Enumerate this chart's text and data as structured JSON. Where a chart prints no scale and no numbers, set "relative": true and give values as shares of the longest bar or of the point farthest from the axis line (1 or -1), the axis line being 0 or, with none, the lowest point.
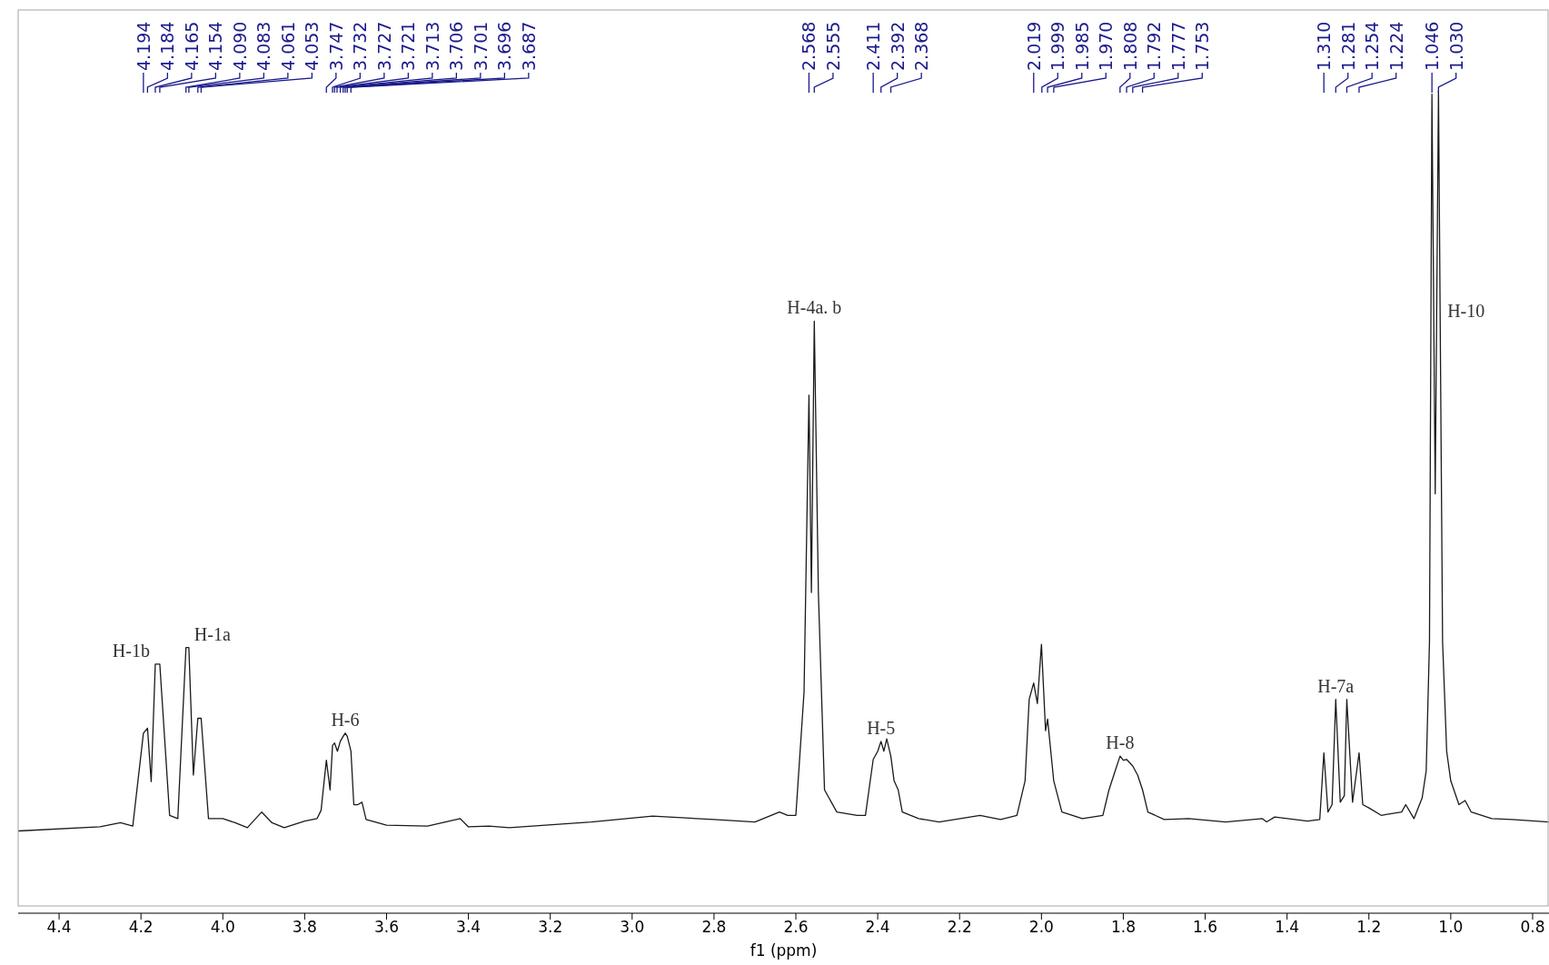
{
  "chart_data": {
    "type": "line",
    "relative": true,
    "xlabel": "f1 (ppm)",
    "xlim": [
      4.5,
      0.76
    ],
    "xticks": [
      4.4,
      4.2,
      {
        "value": 4,
        "label": "4.0"
      },
      3.8,
      3.6,
      3.4,
      3.2,
      {
        "value": 3,
        "label": "3.0"
      },
      2.8,
      2.6,
      2.4,
      2.2,
      {
        "value": 2,
        "label": "2.0"
      },
      1.8,
      1.6,
      1.4,
      1.2,
      {
        "value": 1,
        "label": "1.0"
      },
      0.8
    ],
    "marker": "none",
    "line_style": "solid",
    "series": [
      {
        "color": "#1a1a1a",
        "x": [
          4.5,
          4.3,
          4.25,
          4.22,
          4.194,
          4.184,
          4.175,
          4.165,
          4.154,
          4.13,
          4.11,
          4.09,
          4.083,
          4.072,
          4.061,
          4.053,
          4.035,
          4.0,
          3.97,
          3.94,
          3.905,
          3.88,
          3.85,
          3.8,
          3.77,
          3.76,
          3.747,
          3.738,
          3.732,
          3.727,
          3.72,
          3.713,
          3.706,
          3.701,
          3.696,
          3.687,
          3.68,
          3.67,
          3.66,
          3.65,
          3.6,
          3.5,
          3.42,
          3.4,
          3.35,
          3.3,
          3.1,
          2.95,
          2.8,
          2.7,
          2.64,
          2.62,
          2.6,
          2.58,
          2.568,
          2.562,
          2.555,
          2.545,
          2.53,
          2.5,
          2.45,
          2.43,
          2.42,
          2.411,
          2.4,
          2.392,
          2.385,
          2.378,
          2.368,
          2.36,
          2.35,
          2.34,
          2.3,
          2.25,
          2.15,
          2.1,
          2.06,
          2.04,
          2.03,
          2.019,
          2.01,
          2.0,
          1.99,
          1.985,
          1.97,
          1.95,
          1.9,
          1.85,
          1.835,
          1.82,
          1.808,
          1.8,
          1.792,
          1.777,
          1.765,
          1.753,
          1.74,
          1.7,
          1.64,
          1.55,
          1.46,
          1.45,
          1.43,
          1.35,
          1.32,
          1.31,
          1.3,
          1.29,
          1.281,
          1.27,
          1.26,
          1.254,
          1.24,
          1.224,
          1.215,
          1.2,
          1.17,
          1.12,
          1.11,
          1.09,
          1.07,
          1.06,
          1.052,
          1.046,
          1.038,
          1.03,
          1.02,
          1.01,
          1.0,
          0.98,
          0.965,
          0.95,
          0.9,
          0.85,
          0.76
        ],
        "values": [
          0.1,
          0.105,
          0.11,
          0.106,
          0.219,
          0.225,
          0.16,
          0.303,
          0.303,
          0.119,
          0.115,
          0.323,
          0.323,
          0.168,
          0.237,
          0.237,
          0.115,
          0.115,
          0.11,
          0.104,
          0.123,
          0.11,
          0.104,
          0.112,
          0.115,
          0.125,
          0.186,
          0.15,
          0.204,
          0.207,
          0.197,
          0.209,
          0.215,
          0.219,
          0.215,
          0.197,
          0.132,
          0.132,
          0.135,
          0.114,
          0.107,
          0.106,
          0.115,
          0.105,
          0.106,
          0.104,
          0.111,
          0.118,
          0.114,
          0.111,
          0.123,
          0.119,
          0.119,
          0.269,
          0.63,
          0.39,
          0.72,
          0.39,
          0.15,
          0.123,
          0.119,
          0.119,
          0.155,
          0.187,
          0.197,
          0.209,
          0.197,
          0.212,
          0.191,
          0.161,
          0.15,
          0.123,
          0.115,
          0.111,
          0.119,
          0.114,
          0.119,
          0.161,
          0.26,
          0.28,
          0.255,
          0.327,
          0.222,
          0.236,
          0.161,
          0.123,
          0.115,
          0.119,
          0.15,
          0.173,
          0.191,
          0.186,
          0.187,
          0.179,
          0.168,
          0.15,
          0.123,
          0.114,
          0.115,
          0.111,
          0.115,
          0.111,
          0.117,
          0.112,
          0.114,
          0.195,
          0.123,
          0.132,
          0.26,
          0.135,
          0.143,
          0.26,
          0.135,
          0.195,
          0.132,
          0.128,
          0.119,
          0.123,
          0.132,
          0.115,
          0.14,
          0.173,
          0.33,
          0.996,
          0.51,
          1.0,
          0.33,
          0.197,
          0.161,
          0.132,
          0.137,
          0.123,
          0.115,
          0.114,
          0.111
        ]
      }
    ],
    "annotations": [
      {
        "text": "H-1b",
        "x": 4.165,
        "y": 0.303
      },
      {
        "text": "H-1a",
        "x": 4.083,
        "y": 0.323
      },
      {
        "text": "H-6",
        "x": 3.701,
        "y": 0.219
      },
      {
        "text": "H-4a. b",
        "x": 2.555,
        "y": 0.72
      },
      {
        "text": "H-5",
        "x": 2.392,
        "y": 0.209
      },
      {
        "text": "H-8",
        "x": 1.808,
        "y": 0.191
      },
      {
        "text": "H-7a",
        "x": 1.281,
        "y": 0.26
      },
      {
        "text": "H-10",
        "x": 1.026,
        "y": 0.732
      },
      {
        "text": "4.194",
        "x": 4.194
      },
      {
        "text": "4.184",
        "x": 4.184
      },
      {
        "text": "4.165",
        "x": 4.165
      },
      {
        "text": "4.154",
        "x": 4.154
      },
      {
        "text": "4.090",
        "x": 4.09
      },
      {
        "text": "4.083",
        "x": 4.083
      },
      {
        "text": "4.061",
        "x": 4.061
      },
      {
        "text": "4.053",
        "x": 4.053
      },
      {
        "text": "3.747",
        "x": 3.747
      },
      {
        "text": "3.732",
        "x": 3.732
      },
      {
        "text": "3.727",
        "x": 3.727
      },
      {
        "text": "3.721",
        "x": 3.721
      },
      {
        "text": "3.713",
        "x": 3.713
      },
      {
        "text": "3.706",
        "x": 3.706
      },
      {
        "text": "3.701",
        "x": 3.701
      },
      {
        "text": "3.696",
        "x": 3.696
      },
      {
        "text": "3.687",
        "x": 3.687
      },
      {
        "text": "2.568",
        "x": 2.568
      },
      {
        "text": "2.555",
        "x": 2.555
      },
      {
        "text": "2.411",
        "x": 2.411
      },
      {
        "text": "2.392",
        "x": 2.392
      },
      {
        "text": "2.368",
        "x": 2.368
      },
      {
        "text": "2.019",
        "x": 2.019
      },
      {
        "text": "1.999",
        "x": 1.999
      },
      {
        "text": "1.985",
        "x": 1.985
      },
      {
        "text": "1.970",
        "x": 1.97
      },
      {
        "text": "1.808",
        "x": 1.808
      },
      {
        "text": "1.792",
        "x": 1.792
      },
      {
        "text": "1.777",
        "x": 1.777
      },
      {
        "text": "1.753",
        "x": 1.753
      },
      {
        "text": "1.310",
        "x": 1.31
      },
      {
        "text": "1.281",
        "x": 1.281
      },
      {
        "text": "1.254",
        "x": 1.254
      },
      {
        "text": "1.224",
        "x": 1.224
      },
      {
        "text": "1.046",
        "x": 1.046
      },
      {
        "text": "1.030",
        "x": 1.03
      }
    ]
  }
}
